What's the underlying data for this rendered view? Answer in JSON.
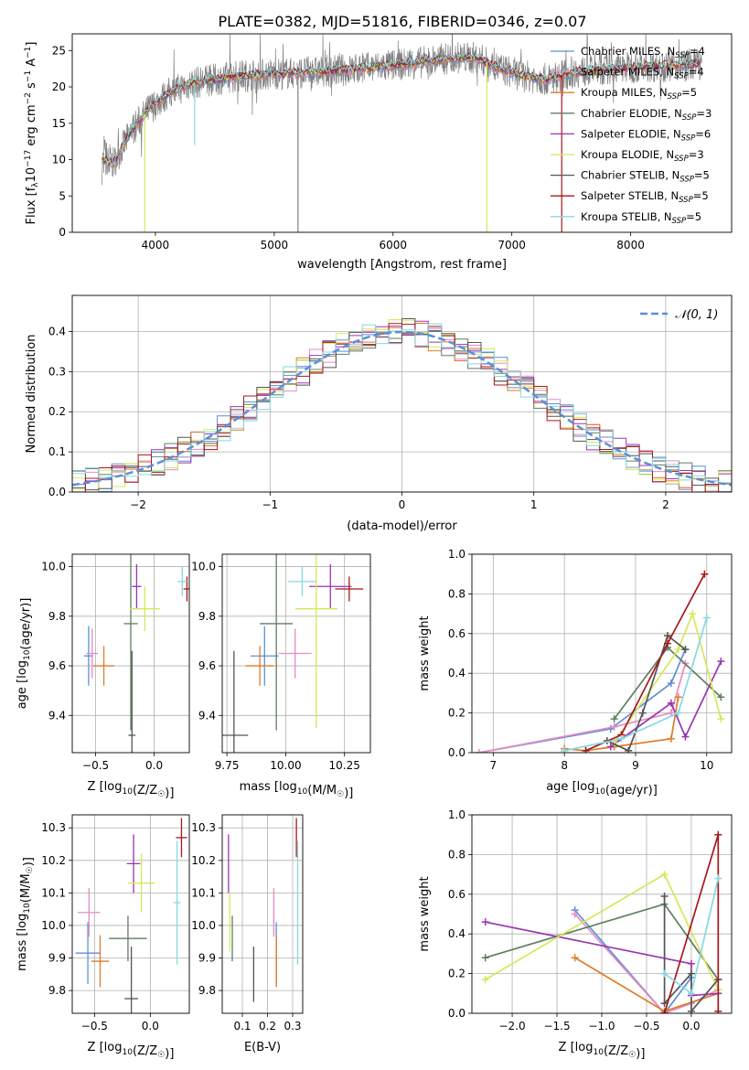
{
  "figure_title": "PLATE=0382, MJD=51816, FIBERID=0346, z=0.07",
  "colors": {
    "Chabrier MILES": "#5b8fd6",
    "Salpeter MILES": "#e88bc4",
    "Kroupa MILES": "#e07b26",
    "Chabrier ELODIE": "#5e7f60",
    "Salpeter ELODIE": "#9a35b0",
    "Kroupa ELODIE": "#d6e85a",
    "Chabrier STELIB": "#555555",
    "Salpeter STELIB": "#a8181b",
    "Kroupa STELIB": "#86d8e3",
    "data": "#808080",
    "normal": "#5b8fd6"
  },
  "chart_data": [
    {
      "type": "line",
      "title": "PLATE=0382, MJD=51816, FIBERID=0346, z=0.07",
      "xlabel": "wavelength [Angstrom, rest frame]",
      "ylabel": "Flux [f_λ 10^-17 erg cm^-2 s^-1 A^-1]",
      "xlim": [
        3300,
        8850
      ],
      "ylim": [
        0,
        27.3
      ],
      "xticks": [
        4000,
        5000,
        6000,
        7000,
        8000
      ],
      "yticks": [
        0,
        5,
        10,
        15,
        20,
        25
      ],
      "legend_position": "right",
      "legend": [
        {
          "model": "Chabrier MILES",
          "label": "Chabrier MILES, N",
          "sub": "SSP",
          "tail": "=4"
        },
        {
          "model": "Salpeter MILES",
          "label": "Salpeter MILES, N",
          "sub": "SSP",
          "tail": "=4"
        },
        {
          "model": "Kroupa MILES",
          "label": "Kroupa MILES, N",
          "sub": "SSP",
          "tail": "=5"
        },
        {
          "model": "Chabrier ELODIE",
          "label": "Chabrier ELODIE, N",
          "sub": "SSP",
          "tail": "=3"
        },
        {
          "model": "Salpeter ELODIE",
          "label": "Salpeter ELODIE, N",
          "sub": "SSP",
          "tail": "=6"
        },
        {
          "model": "Kroupa ELODIE",
          "label": "Kroupa ELODIE, N",
          "sub": "SSP",
          "tail": "=3"
        },
        {
          "model": "Chabrier STELIB",
          "label": "Chabrier STELIB, N",
          "sub": "SSP",
          "tail": "=5"
        },
        {
          "model": "Salpeter STELIB",
          "label": "Salpeter STELIB, N",
          "sub": "SSP",
          "tail": "=5"
        },
        {
          "model": "Kroupa STELIB",
          "label": "Kroupa STELIB, N",
          "sub": "SSP",
          "tail": "=5"
        }
      ],
      "continuum": {
        "x": [
          3550,
          3650,
          3800,
          3950,
          4100,
          4300,
          4500,
          4700,
          5000,
          5300,
          5600,
          5900,
          6200,
          6500,
          6700,
          6900,
          7100,
          7300,
          7500,
          7800,
          8100,
          8400,
          8600
        ],
        "y": [
          10,
          9.5,
          14,
          17,
          19,
          20.5,
          21,
          21.5,
          21.8,
          22,
          22.3,
          22.8,
          23.3,
          24,
          24,
          22.5,
          21.5,
          21,
          22,
          22.5,
          22.8,
          23,
          23.2
        ]
      }
    },
    {
      "type": "histogram",
      "xlabel": "(data-model)/error",
      "ylabel": "Normed distribution",
      "xlim": [
        -2.5,
        2.5
      ],
      "ylim": [
        0,
        0.49
      ],
      "xticks": [
        -2,
        -1,
        0,
        1,
        2
      ],
      "yticks": [
        0,
        0.1,
        0.2,
        0.3,
        0.4
      ],
      "grid": true,
      "legend_position": "top-right",
      "reference_curve": {
        "label": "𝒩(0, 1)",
        "style": "dashed"
      },
      "bin_width": 0.1
    },
    {
      "type": "scatter",
      "xlabel": "Z [log10(Z/Z☉)]",
      "ylabel": "age [log10(age/yr)]",
      "xlim": [
        -0.7,
        0.3
      ],
      "ylim": [
        9.25,
        10.05
      ],
      "xticks": [
        -0.5,
        0.0
      ],
      "yticks": [
        9.4,
        9.6,
        9.8,
        10.0
      ],
      "grid": true,
      "points": [
        {
          "model": "Chabrier MILES",
          "x": -0.56,
          "y": 9.64,
          "xerr": 0.04,
          "yerr": 0.12
        },
        {
          "model": "Salpeter MILES",
          "x": -0.53,
          "y": 9.65,
          "xerr": 0.05,
          "yerr": 0.1
        },
        {
          "model": "Kroupa MILES",
          "x": -0.43,
          "y": 9.6,
          "xerr": 0.09,
          "yerr": 0.08
        },
        {
          "model": "Chabrier ELODIE",
          "x": -0.2,
          "y": 9.77,
          "xerr": 0.06,
          "yerr": 0.43
        },
        {
          "model": "Salpeter ELODIE",
          "x": -0.15,
          "y": 9.92,
          "xerr": 0.04,
          "yerr": 0.09
        },
        {
          "model": "Kroupa ELODIE",
          "x": -0.08,
          "y": 9.83,
          "xerr": 0.13,
          "yerr": 0.09
        },
        {
          "model": "Chabrier STELIB",
          "x": -0.19,
          "y": 9.32,
          "xerr": 0.03,
          "yerr": 0.34
        },
        {
          "model": "Salpeter STELIB",
          "x": 0.28,
          "y": 9.91,
          "xerr": 0.03,
          "yerr": 0.05
        },
        {
          "model": "Kroupa STELIB",
          "x": 0.24,
          "y": 9.94,
          "xerr": 0.04,
          "yerr": 0.06
        }
      ]
    },
    {
      "type": "scatter",
      "xlabel": "mass [log10(M/M☉)]",
      "ylabel": "",
      "xlim": [
        9.73,
        10.36
      ],
      "ylim": [
        9.25,
        10.05
      ],
      "xticks": [
        9.75,
        10.0,
        10.25
      ],
      "yticks": [
        9.4,
        9.6,
        9.8,
        10.0
      ],
      "grid": true,
      "points": [
        {
          "model": "Chabrier MILES",
          "x": 9.91,
          "y": 9.64,
          "xerr": 0.06,
          "yerr": 0.12
        },
        {
          "model": "Salpeter MILES",
          "x": 10.04,
          "y": 9.65,
          "xerr": 0.07,
          "yerr": 0.1
        },
        {
          "model": "Kroupa MILES",
          "x": 9.89,
          "y": 9.6,
          "xerr": 0.06,
          "yerr": 0.08
        },
        {
          "model": "Chabrier ELODIE",
          "x": 9.96,
          "y": 9.77,
          "xerr": 0.07,
          "yerr": 0.43
        },
        {
          "model": "Salpeter ELODIE",
          "x": 10.19,
          "y": 9.92,
          "xerr": 0.09,
          "yerr": 0.09
        },
        {
          "model": "Kroupa ELODIE",
          "x": 10.13,
          "y": 9.83,
          "xerr": 0.09,
          "yerr": 0.48
        },
        {
          "model": "Chabrier STELIB",
          "x": 9.78,
          "y": 9.32,
          "xerr": 0.06,
          "yerr": 0.34
        },
        {
          "model": "Salpeter STELIB",
          "x": 10.27,
          "y": 9.91,
          "xerr": 0.06,
          "yerr": 0.05
        },
        {
          "model": "Kroupa STELIB",
          "x": 10.07,
          "y": 9.94,
          "xerr": 0.06,
          "yerr": 0.06
        }
      ]
    },
    {
      "type": "line",
      "xlabel": "age [log10(age/yr)]",
      "ylabel": "mass weight",
      "xlim": [
        6.7,
        10.35
      ],
      "ylim": [
        0,
        1.0
      ],
      "xticks": [
        7,
        8,
        9,
        10
      ],
      "yticks": [
        0.0,
        0.2,
        0.4,
        0.6,
        0.8,
        1.0
      ],
      "grid": true,
      "series": [
        {
          "model": "Chabrier MILES",
          "x": [
            6.8,
            8.65,
            9.5,
            9.7
          ],
          "y": [
            0.0,
            0.12,
            0.35,
            0.52
          ]
        },
        {
          "model": "Salpeter MILES",
          "x": [
            6.8,
            8.7,
            9.5,
            9.7
          ],
          "y": [
            0.0,
            0.13,
            0.2,
            0.45
          ]
        },
        {
          "model": "Kroupa MILES",
          "x": [
            8.0,
            8.3,
            8.7,
            9.5,
            9.6
          ],
          "y": [
            0.02,
            0.01,
            0.03,
            0.07,
            0.28
          ]
        },
        {
          "model": "Chabrier ELODIE",
          "x": [
            8.7,
            9.45,
            10.2
          ],
          "y": [
            0.17,
            0.53,
            0.28
          ]
        },
        {
          "model": "Salpeter ELODIE",
          "x": [
            8.65,
            9.5,
            9.7,
            10.2
          ],
          "y": [
            0.03,
            0.25,
            0.08,
            0.46
          ]
        },
        {
          "model": "Kroupa ELODIE",
          "x": [
            8.7,
            9.6,
            9.8,
            10.2
          ],
          "y": [
            0.05,
            0.52,
            0.7,
            0.17
          ]
        },
        {
          "model": "Chabrier STELIB",
          "x": [
            8.6,
            8.9,
            9.1,
            9.45,
            9.7
          ],
          "y": [
            0.06,
            0.01,
            0.2,
            0.59,
            0.52
          ]
        },
        {
          "model": "Salpeter STELIB",
          "x": [
            8.3,
            8.8,
            9.45,
            9.97
          ],
          "y": [
            0.01,
            0.09,
            0.55,
            0.9
          ]
        },
        {
          "model": "Kroupa STELIB",
          "x": [
            8.0,
            8.8,
            9.6,
            10.0
          ],
          "y": [
            0.01,
            0.07,
            0.2,
            0.68
          ]
        }
      ]
    },
    {
      "type": "scatter",
      "xlabel": "Z [log10(Z/Z☉)]",
      "ylabel": "mass [log10(M/M☉)]",
      "xlim": [
        -0.7,
        0.35
      ],
      "ylim": [
        9.73,
        10.34
      ],
      "xticks": [
        -0.5,
        0.0
      ],
      "yticks": [
        9.8,
        9.9,
        10.0,
        10.1,
        10.2,
        10.3
      ],
      "grid": true,
      "points": [
        {
          "model": "Chabrier MILES",
          "x": -0.56,
          "y": 9.915,
          "xerr": 0.11,
          "yerr": 0.095
        },
        {
          "model": "Salpeter MILES",
          "x": -0.55,
          "y": 10.04,
          "xerr": 0.1,
          "yerr": 0.075
        },
        {
          "model": "Kroupa MILES",
          "x": -0.45,
          "y": 9.89,
          "xerr": 0.08,
          "yerr": 0.08
        },
        {
          "model": "Chabrier ELODIE",
          "x": -0.2,
          "y": 9.96,
          "xerr": 0.17,
          "yerr": 0.07
        },
        {
          "model": "Salpeter ELODIE",
          "x": -0.15,
          "y": 10.19,
          "xerr": 0.06,
          "yerr": 0.09
        },
        {
          "model": "Kroupa ELODIE",
          "x": -0.08,
          "y": 10.13,
          "xerr": 0.12,
          "yerr": 0.09
        },
        {
          "model": "Chabrier STELIB",
          "x": -0.17,
          "y": 9.775,
          "xerr": 0.06,
          "yerr": 0.16
        },
        {
          "model": "Salpeter STELIB",
          "x": 0.28,
          "y": 10.27,
          "xerr": 0.05,
          "yerr": 0.06
        },
        {
          "model": "Kroupa STELIB",
          "x": 0.24,
          "y": 10.07,
          "xerr": 0.03,
          "yerr": 0.19
        }
      ]
    },
    {
      "type": "scatter",
      "xlabel": "E(B-V)",
      "ylabel": "",
      "xlim": [
        0.02,
        0.34
      ],
      "ylim": [
        9.73,
        10.34
      ],
      "xticks": [
        0.1,
        0.2,
        0.3
      ],
      "yticks": [
        9.8,
        9.9,
        10.0,
        10.1,
        10.2,
        10.3
      ],
      "grid": true,
      "points": [
        {
          "model": "Chabrier MILES",
          "x": 0.235,
          "y": 9.915,
          "xerr": 0,
          "yerr": 0.095
        },
        {
          "model": "Salpeter MILES",
          "x": 0.225,
          "y": 10.04,
          "xerr": 0,
          "yerr": 0.075
        },
        {
          "model": "Kroupa MILES",
          "x": 0.235,
          "y": 9.89,
          "xerr": 0,
          "yerr": 0.08
        },
        {
          "model": "Chabrier ELODIE",
          "x": 0.06,
          "y": 9.96,
          "xerr": 0,
          "yerr": 0.07
        },
        {
          "model": "Salpeter ELODIE",
          "x": 0.045,
          "y": 10.19,
          "xerr": 0,
          "yerr": 0.09
        },
        {
          "model": "Kroupa ELODIE",
          "x": 0.05,
          "y": 10.01,
          "xerr": 0,
          "yerr": 0.09
        },
        {
          "model": "Chabrier STELIB",
          "x": 0.145,
          "y": 9.85,
          "xerr": 0,
          "yerr": 0.085
        },
        {
          "model": "Salpeter STELIB",
          "x": 0.315,
          "y": 10.27,
          "xerr": 0,
          "yerr": 0.06
        },
        {
          "model": "Kroupa STELIB",
          "x": 0.32,
          "y": 10.07,
          "xerr": 0,
          "yerr": 0.19
        }
      ]
    },
    {
      "type": "line",
      "xlabel": "Z [log10(Z/Z☉)]",
      "ylabel": "mass weight",
      "xlim": [
        -2.45,
        0.45
      ],
      "ylim": [
        0,
        1.0
      ],
      "xticks": [
        -2.0,
        -1.5,
        -1.0,
        -0.5,
        0.0
      ],
      "yticks": [
        0.0,
        0.2,
        0.4,
        0.6,
        0.8,
        1.0
      ],
      "grid": true,
      "series": [
        {
          "model": "Chabrier MILES",
          "x": [
            -1.3,
            -0.3,
            0.0
          ],
          "y": [
            0.52,
            0.0,
            0.18
          ]
        },
        {
          "model": "Salpeter MILES",
          "x": [
            -1.3,
            -0.3,
            0.0,
            0.3
          ],
          "y": [
            0.5,
            0.0,
            0.05,
            0.12
          ]
        },
        {
          "model": "Kroupa MILES",
          "x": [
            -1.3,
            -0.3,
            0.3
          ],
          "y": [
            0.28,
            0.01,
            0.1
          ]
        },
        {
          "model": "Chabrier ELODIE",
          "x": [
            -2.3,
            -0.3,
            0.3
          ],
          "y": [
            0.28,
            0.55,
            0.17
          ]
        },
        {
          "model": "Salpeter ELODIE",
          "x": [
            -2.3,
            0.0,
            0.0,
            0.3
          ],
          "y": [
            0.46,
            0.25,
            0.09,
            0.1
          ]
        },
        {
          "model": "Kroupa ELODIE",
          "x": [
            -2.3,
            -0.3,
            0.3
          ],
          "y": [
            0.17,
            0.7,
            0.12
          ]
        },
        {
          "model": "Chabrier STELIB",
          "x": [
            -0.3,
            -0.3,
            0.0,
            0.0,
            0.3
          ],
          "y": [
            0.59,
            0.05,
            0.2,
            0.01,
            0.17
          ]
        },
        {
          "model": "Salpeter STELIB",
          "x": [
            -0.3,
            0.3,
            0.3
          ],
          "y": [
            0.0,
            0.9,
            0.01
          ]
        },
        {
          "model": "Kroupa STELIB",
          "x": [
            -0.3,
            0.0,
            0.3
          ],
          "y": [
            0.2,
            0.1,
            0.68
          ]
        }
      ]
    }
  ]
}
